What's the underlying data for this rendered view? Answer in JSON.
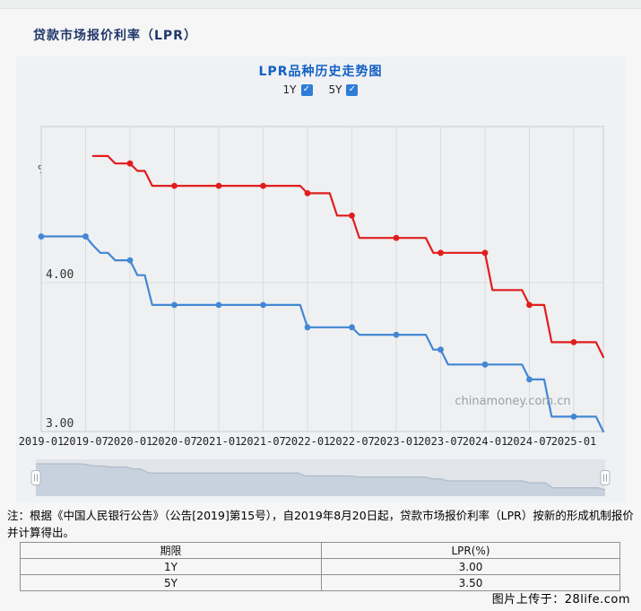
{
  "page": {
    "title": "贷款市场报价利率（LPR）",
    "credit": "图片上传于：28life.com"
  },
  "chart": {
    "title": "LPR品种历史走势图",
    "unit": "%",
    "period": "2019-01 - 2025-05",
    "watermark": "chinamoney.com.cn",
    "checkbox_color": "#2d7dd8",
    "checkbox_glyph": "✓",
    "controls": [
      {
        "label": "1Y",
        "checked": true
      },
      {
        "label": "5Y",
        "checked": true
      }
    ],
    "legend": [
      {
        "label": "1Y",
        "value": "3.00",
        "swatch_color": "#9db9e0"
      },
      {
        "label": "5Y",
        "value": "3.50",
        "swatch_color": "#ea8a8a"
      }
    ]
  },
  "chart_data": {
    "type": "line",
    "title": "LPR品种历史走势图",
    "x_unit": "month",
    "x_start": "2019-01",
    "x_end": "2025-05",
    "total_months": 76,
    "x_tick_interval_months": 6,
    "x_tick_labels": [
      "2019-01",
      "2019-07",
      "2020-01",
      "2020-07",
      "2021-01",
      "2021-07",
      "2022-01",
      "2022-07",
      "2023-01",
      "2023-07",
      "2024-01",
      "2024-07",
      "2025-01"
    ],
    "ylim": [
      3.0,
      5.05
    ],
    "y_ticks": [
      {
        "value": 4.0,
        "label": "4.00"
      },
      {
        "value": 3.0,
        "label": "3.00"
      }
    ],
    "grid": true,
    "marker_interval_months": 6,
    "legend_position": "top-left",
    "series": [
      {
        "name": "1Y",
        "color": "#4387d3",
        "start_month": "2019-01",
        "start_month_index": 0,
        "values": [
          4.31,
          4.31,
          4.31,
          4.31,
          4.31,
          4.31,
          4.31,
          4.25,
          4.2,
          4.2,
          4.15,
          4.15,
          4.15,
          4.05,
          4.05,
          3.85,
          3.85,
          3.85,
          3.85,
          3.85,
          3.85,
          3.85,
          3.85,
          3.85,
          3.85,
          3.85,
          3.85,
          3.85,
          3.85,
          3.85,
          3.85,
          3.85,
          3.85,
          3.85,
          3.85,
          3.85,
          3.7,
          3.7,
          3.7,
          3.7,
          3.7,
          3.7,
          3.7,
          3.65,
          3.65,
          3.65,
          3.65,
          3.65,
          3.65,
          3.65,
          3.65,
          3.65,
          3.65,
          3.55,
          3.55,
          3.45,
          3.45,
          3.45,
          3.45,
          3.45,
          3.45,
          3.45,
          3.45,
          3.45,
          3.45,
          3.45,
          3.35,
          3.35,
          3.35,
          3.1,
          3.1,
          3.1,
          3.1,
          3.1,
          3.1,
          3.1,
          3.0
        ]
      },
      {
        "name": "5Y",
        "color": "#e01d1d",
        "start_month": "2019-08",
        "start_month_index": 7,
        "values": [
          4.85,
          4.85,
          4.85,
          4.8,
          4.8,
          4.8,
          4.75,
          4.75,
          4.65,
          4.65,
          4.65,
          4.65,
          4.65,
          4.65,
          4.65,
          4.65,
          4.65,
          4.65,
          4.65,
          4.65,
          4.65,
          4.65,
          4.65,
          4.65,
          4.65,
          4.65,
          4.65,
          4.65,
          4.65,
          4.6,
          4.6,
          4.6,
          4.6,
          4.45,
          4.45,
          4.45,
          4.3,
          4.3,
          4.3,
          4.3,
          4.3,
          4.3,
          4.3,
          4.3,
          4.3,
          4.3,
          4.2,
          4.2,
          4.2,
          4.2,
          4.2,
          4.2,
          4.2,
          4.2,
          3.95,
          3.95,
          3.95,
          3.95,
          3.95,
          3.85,
          3.85,
          3.85,
          3.6,
          3.6,
          3.6,
          3.6,
          3.6,
          3.6,
          3.6,
          3.5
        ]
      }
    ]
  },
  "note": {
    "text": "注：根据《中国人民银行公告》（公告[2019]第15号），自2019年8月20日起，贷款市场报价利率（LPR）按新的形成机制报价并计算得出。"
  },
  "table": {
    "headers": [
      "期限",
      "LPR(%)"
    ],
    "rows": [
      [
        "1Y",
        "3.00"
      ],
      [
        "5Y",
        "3.50"
      ]
    ]
  }
}
